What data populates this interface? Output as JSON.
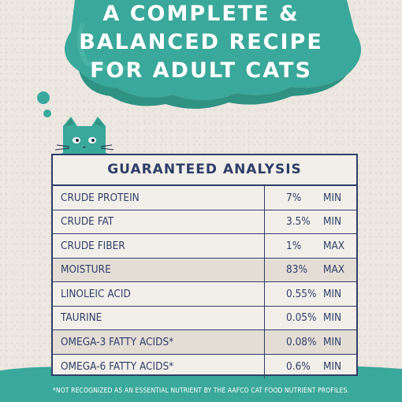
{
  "headline": {
    "line1": "A COMPLETE &",
    "line2": "BALANCED RECIPE",
    "line3": "FOR ADULT CATS"
  },
  "table": {
    "title": "GUARANTEED ANALYSIS",
    "rows": [
      {
        "name": "CRUDE PROTEIN",
        "value": "7%",
        "unit": "MIN"
      },
      {
        "name": "CRUDE FAT",
        "value": "3.5%",
        "unit": "MIN"
      },
      {
        "name": "CRUDE FIBER",
        "value": "1%",
        "unit": "MAX"
      },
      {
        "name": "MOISTURE",
        "value": "83%",
        "unit": "MAX"
      },
      {
        "name": "LINOLEIC ACID",
        "value": "0.55%",
        "unit": "MIN"
      },
      {
        "name": "TAURINE",
        "value": "0.05%",
        "unit": "MIN"
      },
      {
        "name": "OMEGA-3 FATTY ACIDS*",
        "value": "0.08%",
        "unit": "MIN"
      },
      {
        "name": "OMEGA-6 FATTY ACIDS*",
        "value": "0.6%",
        "unit": "MIN"
      }
    ]
  },
  "footnote": "*NOT RECOGNIZED AS AN ESSENTIAL NUTRIENT BY THE AAFCO CAT FOOD NUTRIENT PROFILES.",
  "colors": {
    "teal": "#3aa89a",
    "teal_dark": "#2f9283",
    "navy": "#2f3e67",
    "background": "#ece7e1"
  }
}
